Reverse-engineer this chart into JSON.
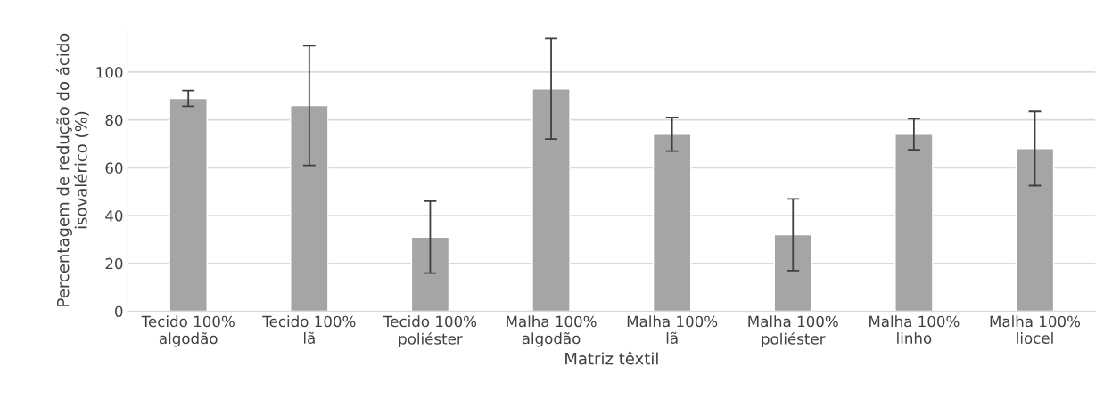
{
  "chart_data": {
    "type": "bar",
    "xlabel": "Matriz têxtil",
    "ylabel": "Percentagem de redução do ácido isovalérico (%)",
    "categories": [
      "Tecido 100%\nalgodão",
      "Tecido 100%\nlã",
      "Tecido 100%\npoliéster",
      "Malha 100%\nalgodão",
      "Malha 100%\nlã",
      "Malha 100%\npoliéster",
      "Malha 100%\nlinho",
      "Malha 100%\nliocel"
    ],
    "values": [
      89,
      86,
      31,
      93,
      74,
      32,
      74,
      68
    ],
    "errors": [
      3.3,
      25,
      15,
      21,
      7,
      15,
      6.5,
      15.5
    ],
    "color": "#a5a5a5",
    "ylim": [
      0,
      118
    ],
    "yticks": [
      0,
      20,
      40,
      60,
      80,
      100
    ],
    "grid": "y"
  }
}
